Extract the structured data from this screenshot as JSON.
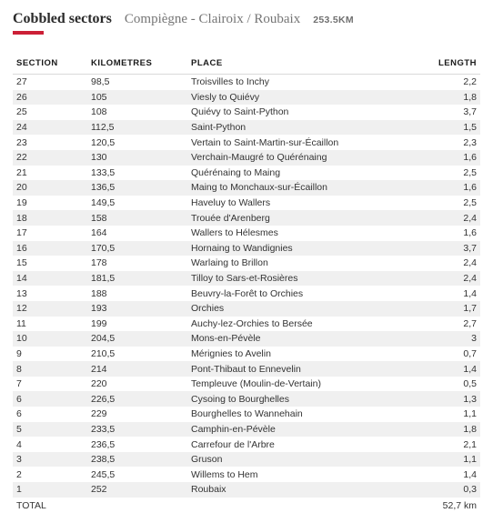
{
  "header": {
    "title": "Cobbled sectors",
    "subtitle": "Compiègne - Clairoix / Roubaix",
    "distance": "253.5KM"
  },
  "columns": {
    "section": "SECTION",
    "km": "KILOMETRES",
    "place": "PLACE",
    "length": "LENGTH"
  },
  "rows": [
    {
      "section": "27",
      "km": "98,5",
      "place": "Troisvilles to Inchy",
      "length": "2,2"
    },
    {
      "section": "26",
      "km": "105",
      "place": "Viesly to Quiévy",
      "length": "1,8"
    },
    {
      "section": "25",
      "km": "108",
      "place": "Quiévy to Saint-Python",
      "length": "3,7"
    },
    {
      "section": "24",
      "km": "112,5",
      "place": "Saint-Python",
      "length": "1,5"
    },
    {
      "section": "23",
      "km": "120,5",
      "place": "Vertain to Saint-Martin-sur-Écaillon",
      "length": "2,3"
    },
    {
      "section": "22",
      "km": "130",
      "place": "Verchain-Maugré to Quérénaing",
      "length": "1,6"
    },
    {
      "section": "21",
      "km": "133,5",
      "place": "Quérénaing to Maing",
      "length": "2,5"
    },
    {
      "section": "20",
      "km": "136,5",
      "place": "Maing to Monchaux-sur-Écaillon",
      "length": "1,6"
    },
    {
      "section": "19",
      "km": "149,5",
      "place": "Haveluy to Wallers",
      "length": "2,5"
    },
    {
      "section": "18",
      "km": "158",
      "place": "Trouée d'Arenberg",
      "length": "2,4"
    },
    {
      "section": "17",
      "km": "164",
      "place": "Wallers to Hélesmes",
      "length": "1,6"
    },
    {
      "section": "16",
      "km": "170,5",
      "place": "Hornaing to Wandignies",
      "length": "3,7"
    },
    {
      "section": "15",
      "km": "178",
      "place": "Warlaing to Brillon",
      "length": "2,4"
    },
    {
      "section": "14",
      "km": "181,5",
      "place": "Tilloy to Sars-et-Rosières",
      "length": "2,4"
    },
    {
      "section": "13",
      "km": "188",
      "place": "Beuvry-la-Forêt to Orchies",
      "length": "1,4"
    },
    {
      "section": "12",
      "km": "193",
      "place": "Orchies",
      "length": "1,7"
    },
    {
      "section": "11",
      "km": "199",
      "place": "Auchy-lez-Orchies to Bersée",
      "length": "2,7"
    },
    {
      "section": "10",
      "km": "204,5",
      "place": "Mons-en-Pévèle",
      "length": "3"
    },
    {
      "section": "9",
      "km": "210,5",
      "place": "Mérignies to Avelin",
      "length": "0,7"
    },
    {
      "section": "8",
      "km": "214",
      "place": "Pont-Thibaut to Ennevelin",
      "length": "1,4"
    },
    {
      "section": "7",
      "km": "220",
      "place": "Templeuve (Moulin-de-Vertain)",
      "length": "0,5"
    },
    {
      "section": "6",
      "km": "226,5",
      "place": "Cysoing to Bourghelles",
      "length": "1,3"
    },
    {
      "section": "6",
      "km": "229",
      "place": "Bourghelles to Wannehain",
      "length": "1,1"
    },
    {
      "section": "5",
      "km": "233,5",
      "place": "Camphin-en-Pévèle",
      "length": "1,8"
    },
    {
      "section": "4",
      "km": "236,5",
      "place": "Carrefour de l'Arbre",
      "length": "2,1"
    },
    {
      "section": "3",
      "km": "238,5",
      "place": "Gruson",
      "length": "1,1"
    },
    {
      "section": "2",
      "km": "245,5",
      "place": "Willems to Hem",
      "length": "1,4"
    },
    {
      "section": "1",
      "km": "252",
      "place": "Roubaix",
      "length": "0,3"
    },
    {
      "section": "TOTAL",
      "km": "",
      "place": "",
      "length": "52,7 km"
    }
  ],
  "style": {
    "accent_color": "#cc1f36",
    "row_alt_bg": "#f0f0f0",
    "text_color": "#333333",
    "border_color": "#d9d9d9",
    "title_font": "Georgia, serif",
    "body_font": "Arial, sans-serif"
  }
}
